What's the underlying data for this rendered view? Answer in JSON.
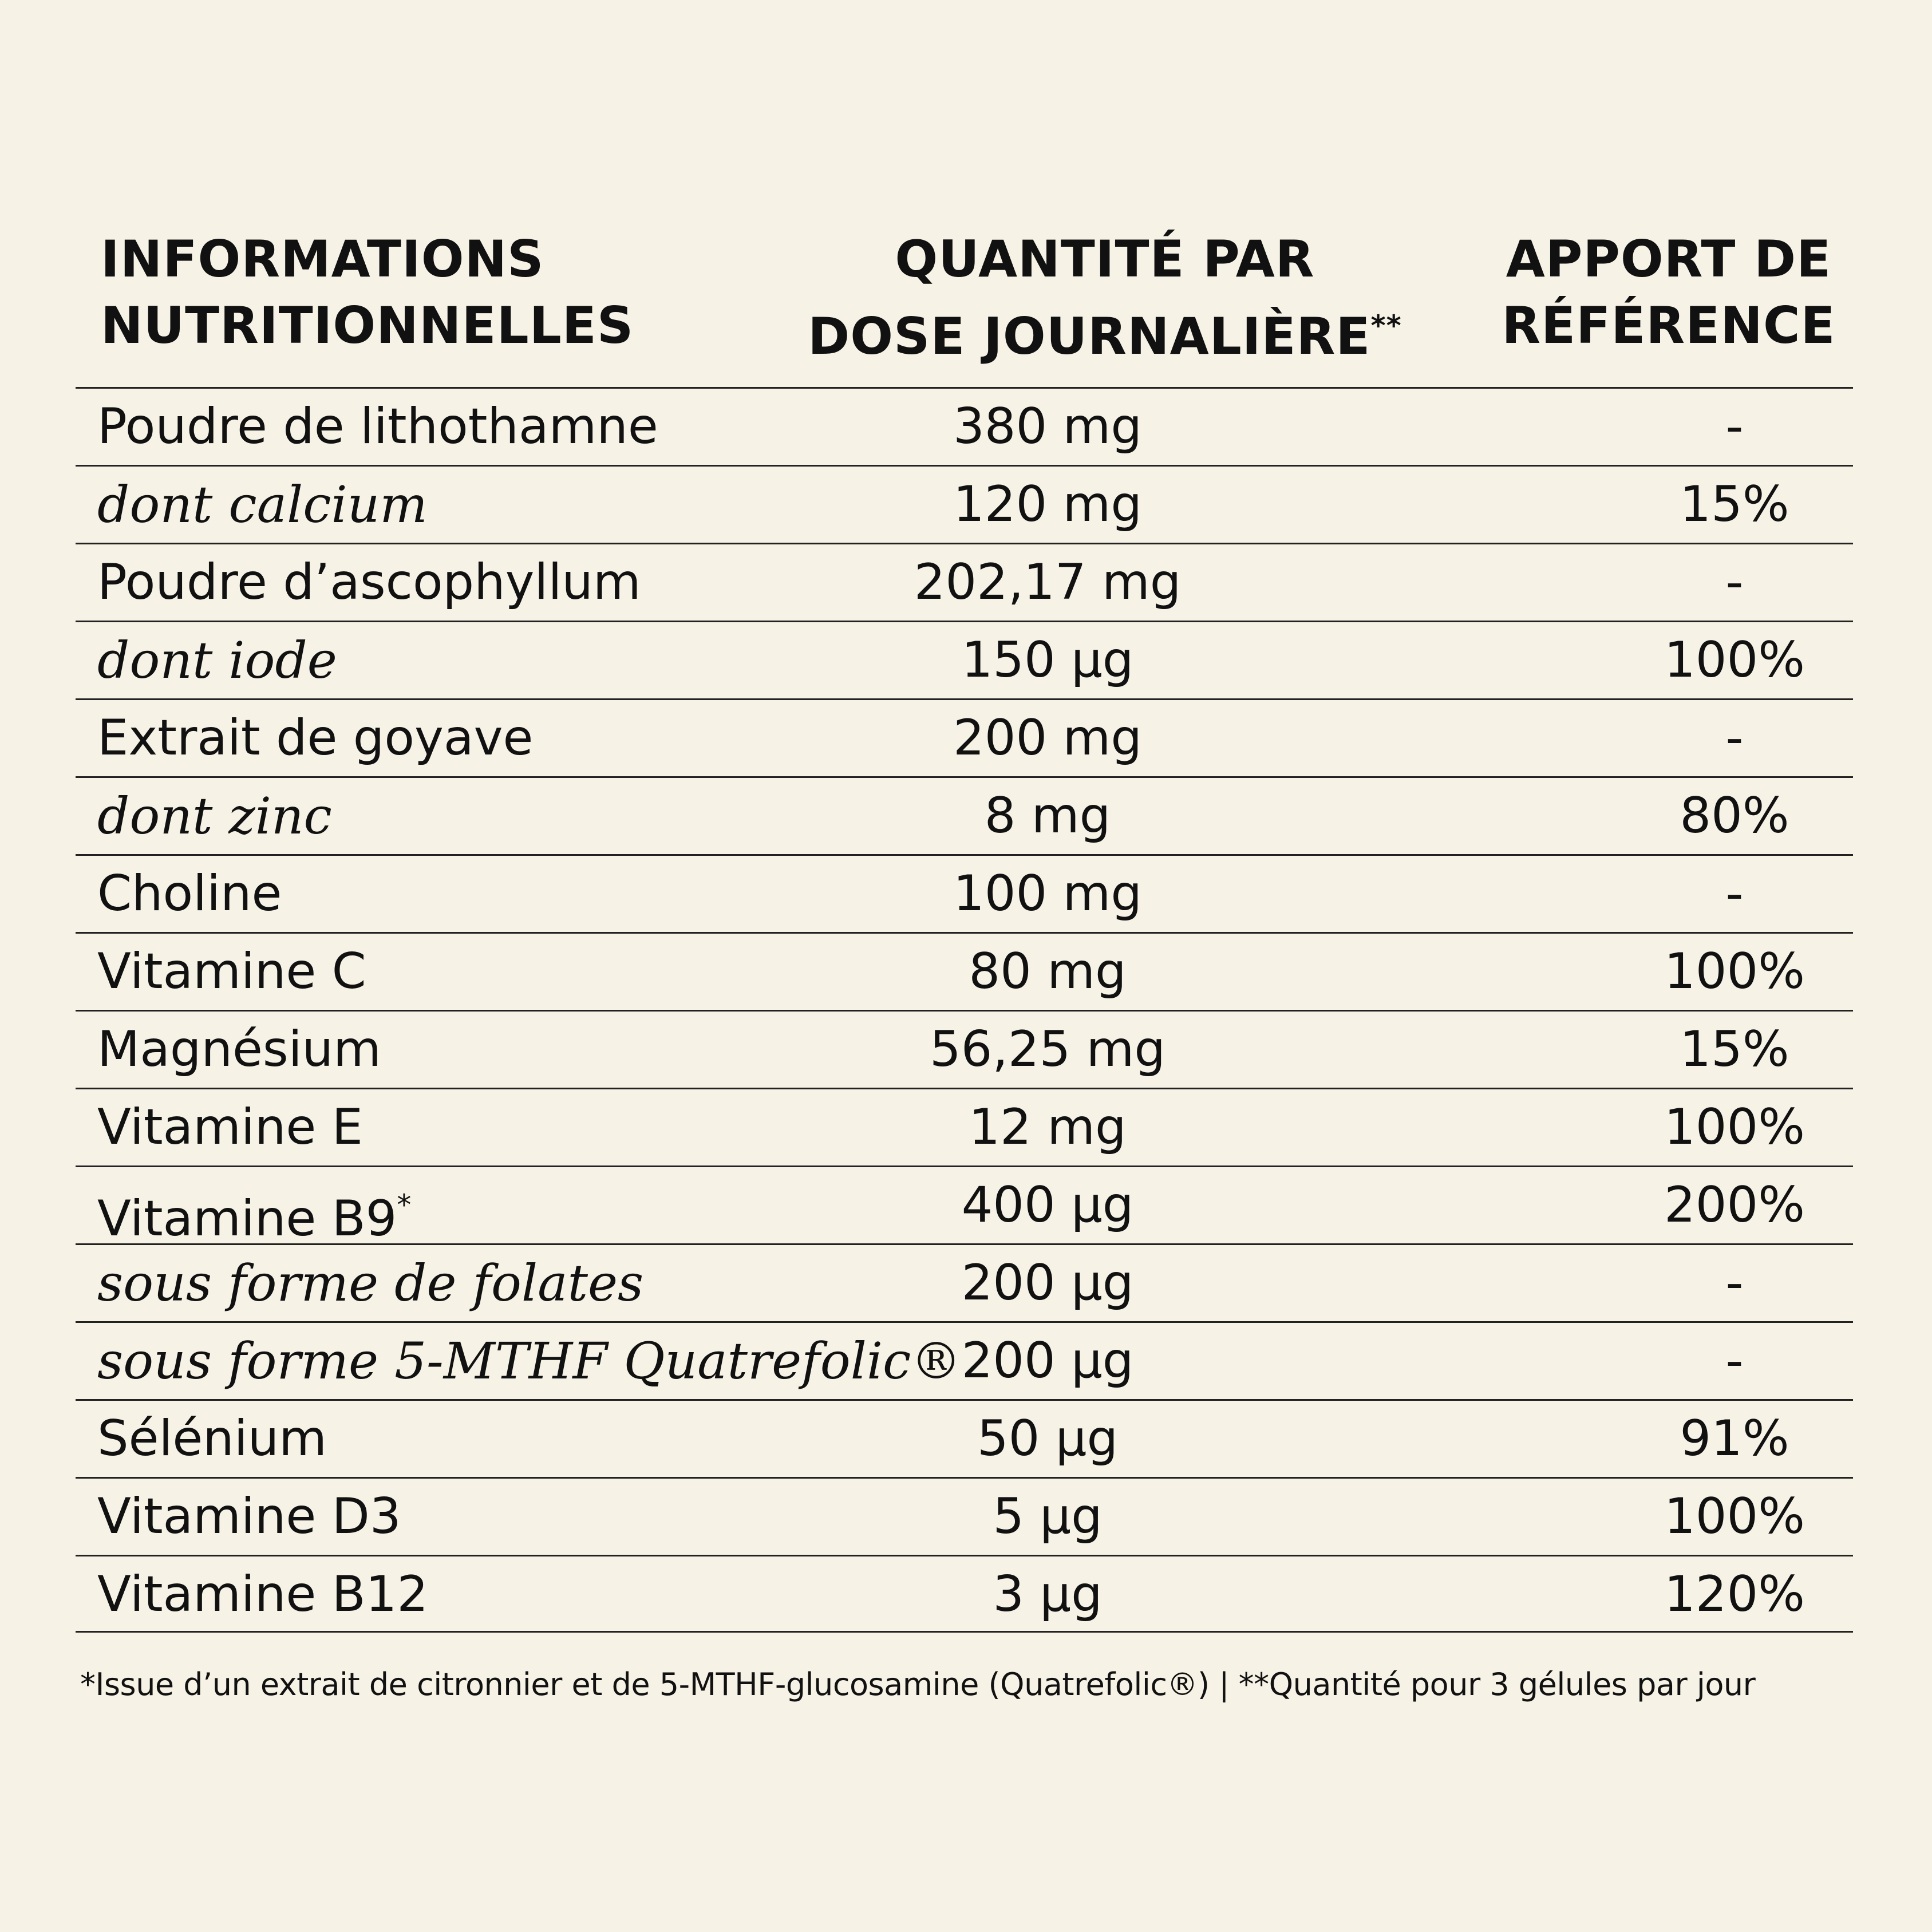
{
  "header": {
    "col1": [
      "INFORMATIONS",
      "NUTRITIONNELLES"
    ],
    "col2": [
      "QUANTITÉ PAR",
      "DOSE JOURNALIÈRE"
    ],
    "col2_mark": "**",
    "col3": [
      "APPORT DE",
      "RÉFÉRENCE"
    ]
  },
  "rows": [
    {
      "name": "Poudre de lithothamne",
      "mark": "",
      "qty": "380 mg",
      "ref": "-",
      "italic": false
    },
    {
      "name": "dont calcium",
      "mark": "",
      "qty": "120 mg",
      "ref": "15%",
      "italic": true
    },
    {
      "name": "Poudre d’ascophyllum",
      "mark": "",
      "qty": "202,17 mg",
      "ref": "-",
      "italic": false
    },
    {
      "name": "dont iode",
      "mark": "",
      "qty": "150 µg",
      "ref": "100%",
      "italic": true
    },
    {
      "name": "Extrait de goyave",
      "mark": "",
      "qty": "200 mg",
      "ref": "-",
      "italic": false
    },
    {
      "name": "dont zinc",
      "mark": "",
      "qty": "8 mg",
      "ref": "80%",
      "italic": true
    },
    {
      "name": "Choline",
      "mark": "",
      "qty": "100 mg",
      "ref": "-",
      "italic": false
    },
    {
      "name": "Vitamine C",
      "mark": "",
      "qty": "80 mg",
      "ref": "100%",
      "italic": false
    },
    {
      "name": "Magnésium",
      "mark": "",
      "qty": "56,25 mg",
      "ref": "15%",
      "italic": false
    },
    {
      "name": "Vitamine E",
      "mark": "",
      "qty": "12 mg",
      "ref": "100%",
      "italic": false
    },
    {
      "name": "Vitamine B9",
      "mark": "*",
      "qty": "400 µg",
      "ref": "200%",
      "italic": false
    },
    {
      "name": "sous forme de folates",
      "mark": "",
      "qty": "200 µg",
      "ref": "-",
      "italic": true
    },
    {
      "name": "sous forme 5-MTHF Quatrefolic®",
      "mark": "",
      "qty": "200 µg",
      "ref": "-",
      "italic": true
    },
    {
      "name": "Sélénium",
      "mark": "",
      "qty": "50 µg",
      "ref": "91%",
      "italic": false
    },
    {
      "name": "Vitamine D3",
      "mark": "",
      "qty": "5 µg",
      "ref": "100%",
      "italic": false
    },
    {
      "name": "Vitamine B12",
      "mark": "",
      "qty": "3 µg",
      "ref": "120%",
      "italic": false
    }
  ],
  "footnote": "*Issue d’un extrait de citronnier et de 5-MTHF-glucosamine (Quatrefolic®) | **Quantité pour 3 gélules par jour"
}
